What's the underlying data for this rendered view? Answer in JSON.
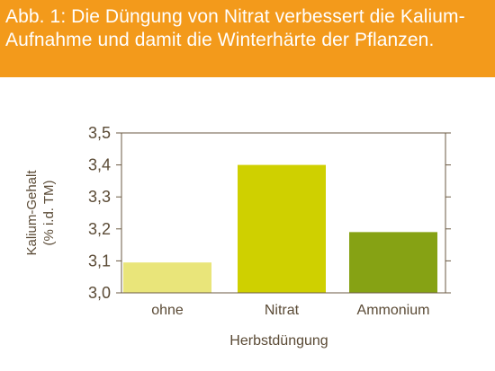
{
  "header": {
    "title": "Abb. 1: Die Düngung von Nitrat verbessert die Kalium-Aufnahme und damit die Winterhärte der Pflanzen."
  },
  "chart_data": {
    "type": "bar",
    "categories": [
      "ohne",
      "Nitrat",
      "Ammonium"
    ],
    "values": [
      3.095,
      3.4,
      3.19
    ],
    "bar_colors": [
      "#e9e57a",
      "#cfd000",
      "#86a214"
    ],
    "xlabel": "Herbstdüngung",
    "ylabel": "Kalium-Gehalt",
    "ylabel_unit": "(% i.d. TM)",
    "ylim": [
      3.0,
      3.5
    ],
    "yticks": [
      "3,0",
      "3,1",
      "3,2",
      "3,3",
      "3,4",
      "3,5"
    ],
    "grid": false,
    "axis_color": "#6b5a43"
  }
}
